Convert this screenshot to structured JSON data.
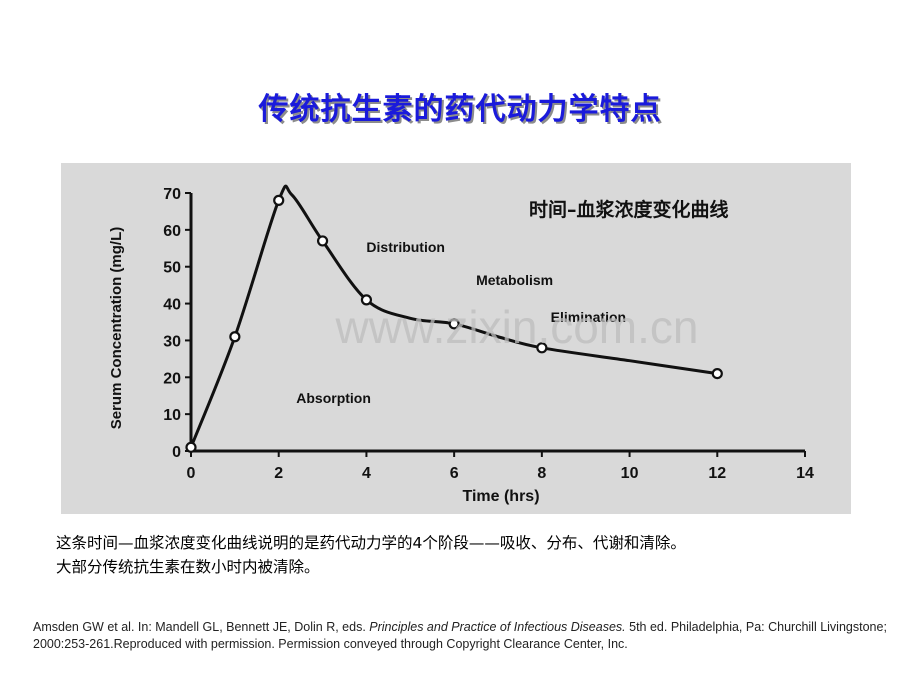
{
  "page": {
    "title": "传统抗生素的药代动力学特点",
    "caption_line1": "这条时间—血浆浓度变化曲线说明的是药代动力学的4个阶段——吸收、分布、代谢和清除。",
    "caption_line2": "大部分传统抗生素在数小时内被清除。",
    "reference_part1": "Amsden GW et al. In: Mandell GL, Bennett JE, Dolin R, eds. ",
    "reference_italic": "Principles and Practice of Infectious Diseases.",
    "reference_part2": " 5th ed. Philadelphia, Pa: Churchill Livingstone; 2000:253-261.Reproduced with permission. Permission conveyed through Copyright Clearance Center, Inc.",
    "watermark": "www.zixin.com.cn"
  },
  "colors": {
    "title": "#1a1adb",
    "panel": "#d9d9d9",
    "line": "#111111"
  },
  "chart_data": {
    "type": "line",
    "title": "时间–血浆浓度变化曲线",
    "xlabel": "Time (hrs)",
    "ylabel": "Serum Concentration (mg/L)",
    "xlim": [
      0,
      14
    ],
    "ylim": [
      0,
      70
    ],
    "xticks": [
      0,
      2,
      4,
      6,
      8,
      10,
      12,
      14
    ],
    "yticks": [
      0,
      10,
      20,
      30,
      40,
      50,
      60,
      70
    ],
    "series": [
      {
        "points": [
          [
            0,
            1
          ],
          [
            1,
            31
          ],
          [
            2,
            68
          ],
          [
            3,
            57
          ],
          [
            4,
            41
          ],
          [
            6,
            34.5
          ],
          [
            8,
            28
          ],
          [
            12,
            21
          ]
        ]
      }
    ],
    "curve": [
      [
        0,
        1
      ],
      [
        1,
        31
      ],
      [
        2,
        68
      ],
      [
        2.3,
        69.5
      ],
      [
        3,
        57
      ],
      [
        4,
        41
      ],
      [
        5,
        36
      ],
      [
        6,
        34.5
      ],
      [
        7,
        31
      ],
      [
        8,
        28
      ],
      [
        10,
        24.5
      ],
      [
        12,
        21
      ]
    ],
    "annotations": [
      {
        "text": "Absorption",
        "x": 2.4,
        "y": 13
      },
      {
        "text": "Distribution",
        "x": 4.0,
        "y": 54
      },
      {
        "text": "Metabolism",
        "x": 6.5,
        "y": 45
      },
      {
        "text": "Elimination",
        "x": 8.2,
        "y": 35
      }
    ],
    "grid": false
  }
}
